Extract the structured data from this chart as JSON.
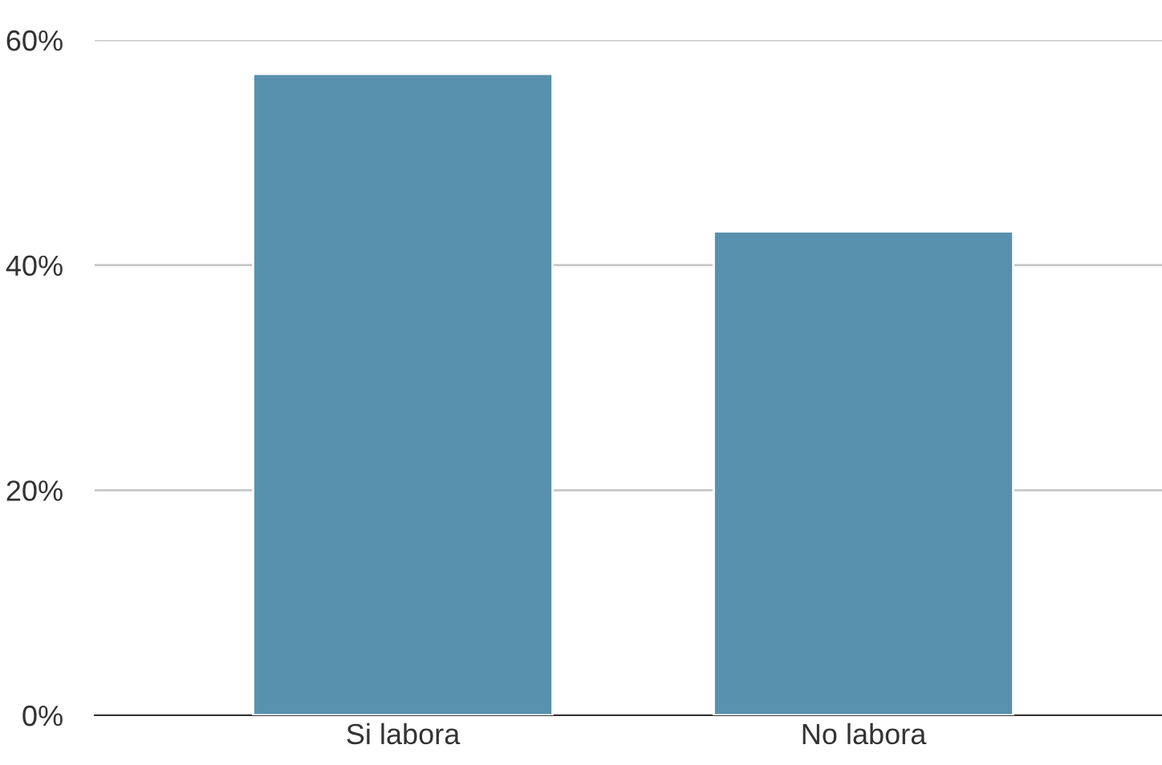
{
  "chart_data": {
    "type": "bar",
    "categories": [
      "Si labora",
      "No labora"
    ],
    "values": [
      57,
      43
    ],
    "color": "#5891ad",
    "ylim": [
      0,
      60
    ],
    "yticks": [
      {
        "value": 0,
        "label": "0%"
      },
      {
        "value": 20,
        "label": "20%"
      },
      {
        "value": 40,
        "label": "40%"
      },
      {
        "value": 60,
        "label": "60%"
      }
    ],
    "grid": "y"
  }
}
